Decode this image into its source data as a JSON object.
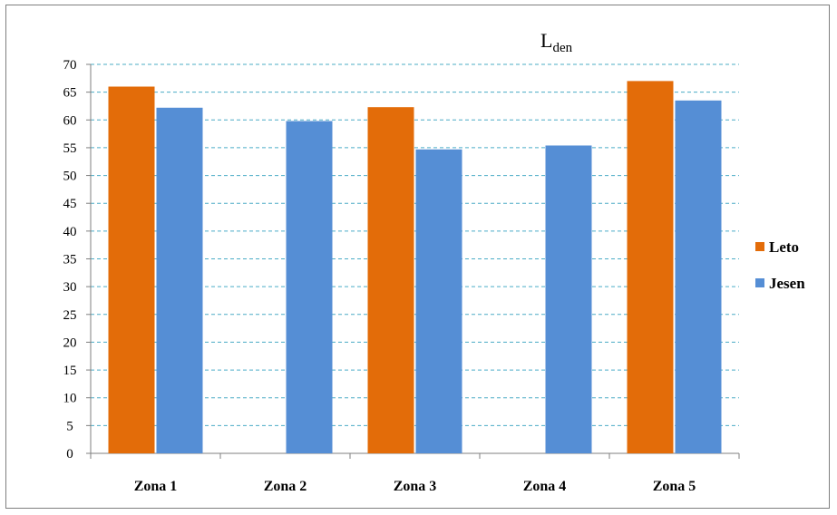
{
  "chart_data": {
    "type": "bar",
    "title_main": "L",
    "title_sub": "den",
    "categories": [
      "Zona 1",
      "Zona 2",
      "Zona 3",
      "Zona 4",
      "Zona 5"
    ],
    "series": [
      {
        "name": "Leto",
        "color": "#E36C09",
        "values": [
          66,
          null,
          62.3,
          null,
          67
        ]
      },
      {
        "name": "Jesen",
        "color": "#558ED5",
        "values": [
          62.2,
          59.8,
          54.7,
          55.4,
          63.5
        ]
      }
    ],
    "ylim": [
      0,
      70
    ],
    "yticks": [
      0,
      5,
      10,
      15,
      20,
      25,
      30,
      35,
      40,
      45,
      50,
      55,
      60,
      65,
      70
    ],
    "grid": true,
    "legend_position": "right"
  }
}
